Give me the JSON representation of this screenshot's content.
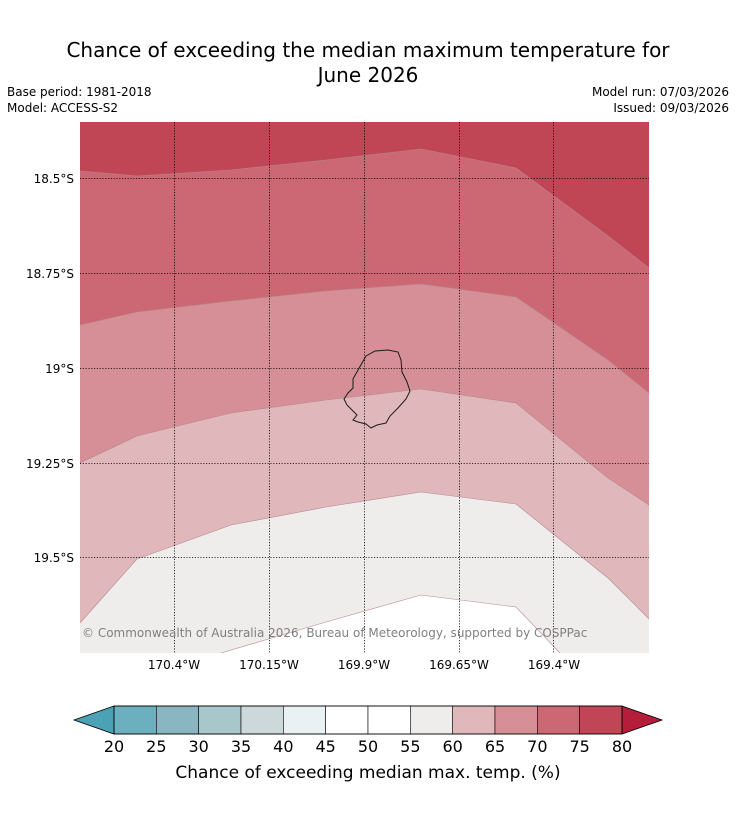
{
  "title": {
    "line1": "Chance of exceeding the median maximum temperature for",
    "line2": "June 2026"
  },
  "header": {
    "base_period": "Base period: 1981-2018",
    "model": "Model: ACCESS-S2",
    "model_run": "Model run: 07/03/2026",
    "issued": "Issued: 09/03/2026"
  },
  "map": {
    "lat_labels": [
      "18.5°S",
      "18.75°S",
      "19°S",
      "19.25°S",
      "19.5°S"
    ],
    "lon_labels": [
      "170.4°W",
      "170.15°W",
      "169.9°W",
      "169.65°W",
      "169.4°W"
    ],
    "copyright": "© Commonwealth of Australia 2026, Bureau of Meteorology, supported by COSPPac",
    "contour_colors": {
      "75-80": "#c04656",
      "70-75": "#cb6874",
      "65-70": "#d68f96",
      "60-65": "#e0b8bc",
      "55-60": "#eeedec",
      "50-55": "#ffffff"
    },
    "coastline_color": "#1a1a1a"
  },
  "colorbar": {
    "ticks": [
      "20",
      "25",
      "30",
      "35",
      "40",
      "45",
      "50",
      "55",
      "60",
      "65",
      "70",
      "75",
      "80"
    ],
    "colors": [
      "#6cafbe",
      "#8ab6c1",
      "#a8c7cb",
      "#cdd8db",
      "#eaf1f2",
      "#ffffff",
      "#ffffff",
      "#eeedec",
      "#e0b8bc",
      "#d68f96",
      "#cb6874",
      "#c04656"
    ],
    "under_color": "#4aa2b4",
    "over_color": "#b51d3b",
    "label": "Chance of exceeding median max. temp. (%)"
  }
}
